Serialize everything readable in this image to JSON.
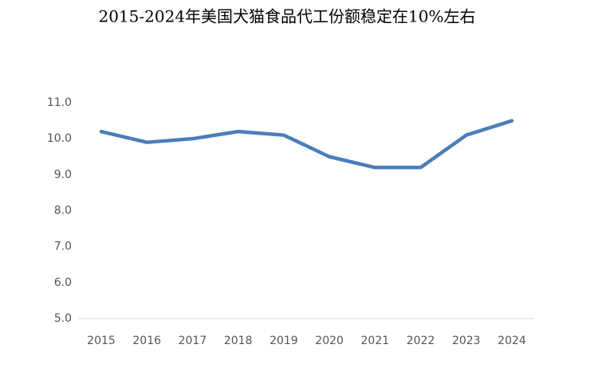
{
  "chart_data": {
    "type": "line",
    "title": "2015-2024年美国犬猫食品代工份额稳定在10%左右",
    "categories": [
      "2015",
      "2016",
      "2017",
      "2018",
      "2019",
      "2020",
      "2021",
      "2022",
      "2023",
      "2024"
    ],
    "series": [
      {
        "color": "#4a7ebb",
        "values": [
          10.2,
          9.9,
          10.0,
          10.2,
          10.1,
          9.5,
          9.2,
          9.2,
          10.1,
          10.5
        ]
      }
    ],
    "ylim": [
      5,
      11
    ],
    "yticks": [
      {
        "value": 5,
        "label": "5.0"
      },
      {
        "value": 6,
        "label": "6.0"
      },
      {
        "value": 7,
        "label": "7.0"
      },
      {
        "value": 8,
        "label": "8.0"
      },
      {
        "value": 9,
        "label": "9.0"
      },
      {
        "value": 10,
        "label": "10.0"
      },
      {
        "value": 11,
        "label": "11.0"
      }
    ],
    "grid": false
  }
}
